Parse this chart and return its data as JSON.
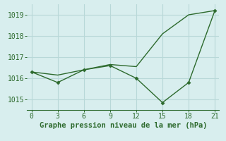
{
  "x": [
    0,
    3,
    6,
    9,
    12,
    15,
    18,
    21
  ],
  "line1": [
    1016.3,
    1016.15,
    1016.4,
    1016.65,
    1016.55,
    1018.1,
    1019.0,
    1019.2
  ],
  "line2_x": [
    0,
    3,
    6,
    9,
    12,
    15,
    18,
    21
  ],
  "line2": [
    1016.3,
    1015.8,
    1016.4,
    1016.6,
    1016.0,
    1014.85,
    1015.8,
    1019.2
  ],
  "line_color": "#2d6a2d",
  "bg_color": "#d8eeee",
  "grid_color": "#b8d8d8",
  "xlabel": "Graphe pression niveau de la mer (hPa)",
  "xlim": [
    -0.5,
    21.5
  ],
  "ylim": [
    1014.5,
    1019.5
  ],
  "yticks": [
    1015,
    1016,
    1017,
    1018,
    1019
  ],
  "xticks": [
    0,
    3,
    6,
    9,
    12,
    15,
    18,
    21
  ],
  "xlabel_fontsize": 7.5,
  "tick_fontsize": 7
}
